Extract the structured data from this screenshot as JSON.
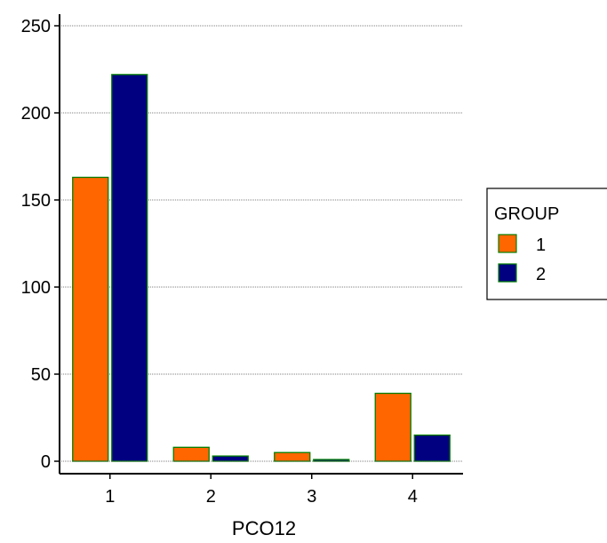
{
  "chart_data": {
    "type": "bar",
    "title": "",
    "xlabel": "PCO12",
    "ylabel": "",
    "categories": [
      "1",
      "2",
      "3",
      "4"
    ],
    "series": [
      {
        "name": "1",
        "values": [
          163,
          8,
          5,
          39
        ],
        "color": "#ff6600"
      },
      {
        "name": "2",
        "values": [
          222,
          3,
          1,
          15
        ],
        "color": "#000080"
      }
    ],
    "bar_edge_color": "#008000",
    "ylim": [
      0,
      250
    ],
    "yticks": [
      "0",
      "50",
      "100",
      "150",
      "200",
      "250"
    ],
    "grid": "horizontal dotted",
    "legend": {
      "title": "GROUP",
      "placement": "right"
    }
  }
}
